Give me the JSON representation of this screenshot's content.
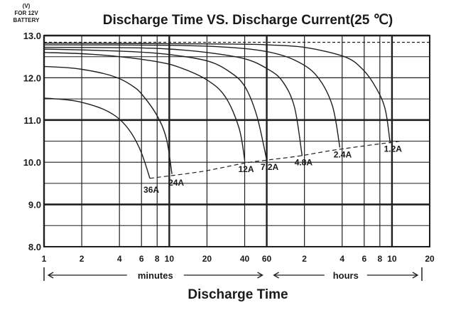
{
  "chart_data": {
    "type": "line",
    "title": "Discharge Time VS. Discharge Current(25 ℃)",
    "y_unit_lines": [
      "(V)",
      "FOR 12V",
      "BATTERY"
    ],
    "ylim": [
      8.0,
      13.0
    ],
    "yticks": [
      "8.0",
      "9.0",
      "10.0",
      "11.0",
      "12.0",
      "13.0"
    ],
    "xlabel": "Discharge Time",
    "x_scale": "log",
    "x_range_minutes": [
      1,
      1200
    ],
    "xticks": [
      {
        "label": "1",
        "minutes": 1
      },
      {
        "label": "2",
        "minutes": 2
      },
      {
        "label": "4",
        "minutes": 4
      },
      {
        "label": "6",
        "minutes": 6
      },
      {
        "label": "8",
        "minutes": 8
      },
      {
        "label": "10",
        "minutes": 10
      },
      {
        "label": "20",
        "minutes": 20
      },
      {
        "label": "40",
        "minutes": 40
      },
      {
        "label": "60",
        "minutes": 60
      },
      {
        "label": "2",
        "minutes": 120
      },
      {
        "label": "4",
        "minutes": 240
      },
      {
        "label": "6",
        "minutes": 360
      },
      {
        "label": "8",
        "minutes": 480
      },
      {
        "label": "10",
        "minutes": 600
      },
      {
        "label": "20",
        "minutes": 1200
      }
    ],
    "ranges": [
      {
        "label": "minutes",
        "from_minutes": 1,
        "to_minutes": 60
      },
      {
        "label": "hours",
        "from_minutes": 60,
        "to_minutes": 1200
      }
    ],
    "grid": true,
    "series": [
      {
        "name": "36A",
        "x_minutes": [
          1,
          1.5,
          2,
          3,
          4,
          5,
          6,
          7
        ],
        "y": [
          11.52,
          11.48,
          11.42,
          11.25,
          11.02,
          10.68,
          10.22,
          9.62
        ]
      },
      {
        "name": "24A",
        "x_minutes": [
          1,
          1.5,
          2,
          3,
          4,
          5,
          6,
          8,
          9.5,
          10.5
        ],
        "y": [
          12.27,
          12.24,
          12.2,
          12.1,
          11.98,
          11.82,
          11.62,
          11.1,
          10.55,
          9.72
        ]
      },
      {
        "name": "12A",
        "x_minutes": [
          1,
          2,
          4,
          8,
          12,
          20,
          28,
          36,
          40
        ],
        "y": [
          12.6,
          12.57,
          12.5,
          12.38,
          12.25,
          11.95,
          11.55,
          10.82,
          10.05
        ]
      },
      {
        "name": "7.2A",
        "x_minutes": [
          1,
          2,
          5,
          10,
          20,
          30,
          40,
          50,
          60
        ],
        "y": [
          12.68,
          12.66,
          12.62,
          12.55,
          12.4,
          12.15,
          11.8,
          11.1,
          10.05
        ]
      },
      {
        "name": "4.8A",
        "x_minutes": [
          1,
          5,
          10,
          20,
          40,
          60,
          80,
          100,
          115
        ],
        "y": [
          12.72,
          12.71,
          12.68,
          12.6,
          12.45,
          12.22,
          11.92,
          11.3,
          10.15
        ]
      },
      {
        "name": "2.4A",
        "x_minutes": [
          1,
          10,
          30,
          60,
          100,
          150,
          200,
          230
        ],
        "y": [
          12.78,
          12.77,
          12.72,
          12.62,
          12.42,
          12.05,
          11.35,
          10.35
        ]
      },
      {
        "name": "1.2A",
        "x_minutes": [
          1,
          30,
          60,
          120,
          250,
          350,
          450,
          530,
          580
        ],
        "y": [
          12.82,
          12.8,
          12.78,
          12.72,
          12.5,
          12.2,
          11.75,
          11.25,
          10.45
        ]
      }
    ],
    "final_voltage_line": {
      "x_minutes": [
        7,
        18,
        40,
        60,
        110,
        220,
        700
      ],
      "y": [
        9.62,
        9.78,
        9.98,
        10.05,
        10.15,
        10.3,
        10.5
      ]
    },
    "reference_line": {
      "x_minutes": [
        1,
        1200
      ],
      "y": [
        12.84,
        12.84
      ]
    }
  }
}
